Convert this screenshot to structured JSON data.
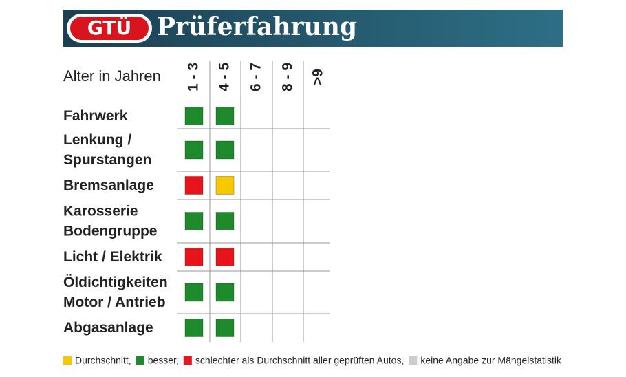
{
  "header": {
    "logo": "GTÜ",
    "title": "Prüferfahrung"
  },
  "table": {
    "axis_label": "Alter in Jahren",
    "columns": [
      "1 - 3",
      "4 - 5",
      "6 - 7",
      "8 - 9",
      ">9"
    ],
    "rows": [
      {
        "label": [
          "Fahrwerk"
        ],
        "cells": [
          "#1f8a2c",
          "#1f8a2c",
          null,
          null,
          null
        ]
      },
      {
        "label": [
          "Lenkung /",
          "Spurstangen"
        ],
        "cells": [
          "#1f8a2c",
          "#1f8a2c",
          null,
          null,
          null
        ]
      },
      {
        "label": [
          "Bremsanlage"
        ],
        "cells": [
          "#e8141c",
          "#f5c800",
          null,
          null,
          null
        ]
      },
      {
        "label": [
          "Karosserie",
          "Bodengruppe"
        ],
        "cells": [
          "#1f8a2c",
          "#1f8a2c",
          null,
          null,
          null
        ]
      },
      {
        "label": [
          "Licht / Elektrik"
        ],
        "cells": [
          "#e8141c",
          "#e8141c",
          null,
          null,
          null
        ]
      },
      {
        "label": [
          "Öldichtigkeiten",
          "Motor / Antrieb"
        ],
        "cells": [
          "#1f8a2c",
          "#1f8a2c",
          null,
          null,
          null
        ]
      },
      {
        "label": [
          "Abgasanlage"
        ],
        "cells": [
          "#1f8a2c",
          "#1f8a2c",
          null,
          null,
          null
        ]
      }
    ]
  },
  "legend": [
    {
      "color": "#f5c800",
      "text": "Durchschnitt,"
    },
    {
      "color": "#1f8a2c",
      "text": "besser,"
    },
    {
      "color": "#e8141c",
      "text": "schlechter als Durchschnitt aller geprüften Autos,"
    },
    {
      "color": "#cccccc",
      "text": "keine Angabe zur Mängelstatistik"
    }
  ]
}
